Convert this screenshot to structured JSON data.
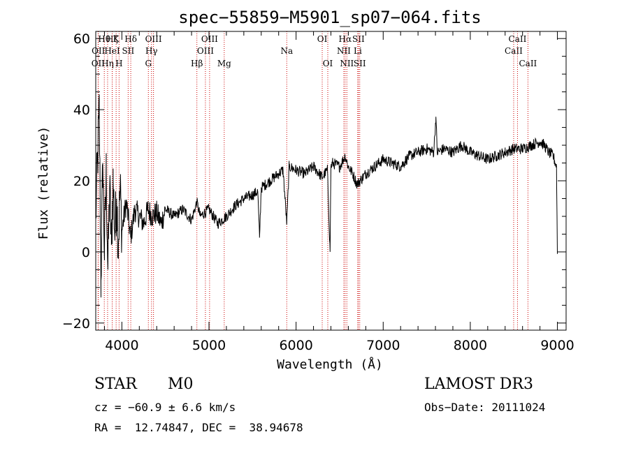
{
  "chart_data": {
    "type": "line",
    "title": "spec−55859−M5901_sp07−064.fits",
    "xlabel": "Wavelength (Å)",
    "ylabel": "Flux (relative)",
    "xlim": [
      3700,
      9100
    ],
    "ylim": [
      -22,
      62
    ],
    "xticks": [
      4000,
      5000,
      6000,
      7000,
      8000,
      9000
    ],
    "xtick_labels": [
      "4000",
      "5000",
      "6000",
      "7000",
      "8000",
      "9000"
    ],
    "yticks": [
      -20,
      0,
      20,
      40,
      60
    ],
    "ytick_labels": [
      "−20",
      "0",
      "20",
      "40",
      "60"
    ],
    "series": [
      {
        "name": "flux",
        "x": [
          3700,
          3740,
          3760,
          3780,
          3800,
          3820,
          3840,
          3860,
          3880,
          3900,
          3920,
          3940,
          3960,
          3980,
          4000,
          4050,
          4100,
          4150,
          4200,
          4250,
          4300,
          4350,
          4400,
          4450,
          4500,
          4600,
          4700,
          4800,
          4860,
          4900,
          5000,
          5100,
          5200,
          5300,
          5400,
          5500,
          5560,
          5580,
          5600,
          5700,
          5800,
          5850,
          5893,
          5920,
          6000,
          6100,
          6200,
          6300,
          6360,
          6390,
          6400,
          6420,
          6500,
          6563,
          6600,
          6650,
          6700,
          6800,
          6900,
          7000,
          7100,
          7200,
          7300,
          7400,
          7500,
          7580,
          7605,
          7620,
          7700,
          7800,
          7900,
          8000,
          8100,
          8200,
          8300,
          8400,
          8500,
          8600,
          8700,
          8800,
          8850,
          8900,
          8950,
          8990,
          9000
        ],
        "y": [
          10,
          40,
          -8,
          25,
          0,
          22,
          -5,
          18,
          2,
          20,
          5,
          15,
          2,
          18,
          6,
          14,
          4,
          12,
          10,
          8,
          12,
          10,
          11,
          8,
          12,
          10,
          12,
          9,
          14,
          10,
          12,
          8,
          10,
          13,
          15,
          16,
          17,
          4,
          18,
          20,
          22,
          23,
          8,
          24,
          23,
          22,
          24,
          21,
          23,
          0,
          24,
          25,
          24,
          27,
          24,
          22,
          19,
          22,
          24,
          26,
          25,
          24,
          27,
          28,
          29,
          28,
          38,
          28,
          29,
          28,
          30,
          28,
          27,
          26,
          27,
          28,
          29,
          29,
          30,
          31,
          30,
          28,
          27,
          24,
          0
        ]
      }
    ],
    "line_markers": [
      {
        "name": "OII",
        "wavelength": 3727,
        "row": 2
      },
      {
        "name": "Hθ",
        "wavelength": 3798,
        "row": 0
      },
      {
        "name": "OII",
        "wavelength": 3730,
        "row": 1
      },
      {
        "name": "Hη",
        "wavelength": 3836,
        "row": 2
      },
      {
        "name": "Hζ",
        "wavelength": 3889,
        "row": 0
      },
      {
        "name": "HeI",
        "wavelength": 3889,
        "row": 1
      },
      {
        "name": "K",
        "wavelength": 3934,
        "row": 0
      },
      {
        "name": "H",
        "wavelength": 3968,
        "row": 2
      },
      {
        "name": "SII",
        "wavelength": 4072,
        "row": 1
      },
      {
        "name": "Hδ",
        "wavelength": 4102,
        "row": 0
      },
      {
        "name": "G",
        "wavelength": 4304,
        "row": 2
      },
      {
        "name": "Hγ",
        "wavelength": 4340,
        "row": 1
      },
      {
        "name": "OIII",
        "wavelength": 4363,
        "row": 0
      },
      {
        "name": "Hβ",
        "wavelength": 4861,
        "row": 2
      },
      {
        "name": "OIII",
        "wavelength": 4959,
        "row": 1
      },
      {
        "name": "OIII",
        "wavelength": 5007,
        "row": 0
      },
      {
        "name": "Mg",
        "wavelength": 5175,
        "row": 2
      },
      {
        "name": "Na",
        "wavelength": 5893,
        "row": 1
      },
      {
        "name": "OI",
        "wavelength": 6300,
        "row": 0
      },
      {
        "name": "OI",
        "wavelength": 6364,
        "row": 2
      },
      {
        "name": "NII",
        "wavelength": 6548,
        "row": 1
      },
      {
        "name": "Hα",
        "wavelength": 6563,
        "row": 0
      },
      {
        "name": "NII",
        "wavelength": 6583,
        "row": 2
      },
      {
        "name": "Li",
        "wavelength": 6708,
        "row": 1
      },
      {
        "name": "SII",
        "wavelength": 6716,
        "row": 0
      },
      {
        "name": "SII",
        "wavelength": 6731,
        "row": 2
      },
      {
        "name": "CaII",
        "wavelength": 8498,
        "row": 1
      },
      {
        "name": "CaII",
        "wavelength": 8542,
        "row": 0
      },
      {
        "name": "CaII",
        "wavelength": 8662,
        "row": 2
      }
    ]
  },
  "info": {
    "class": "STAR",
    "subclass": "M0",
    "survey": "LAMOST DR3",
    "cz": "cz = −60.9 ± 6.6 km/s",
    "obs_date": "Obs−Date: 20111024",
    "radec": "RA =  12.74847, DEC =  38.94678"
  },
  "colors": {
    "spectrum": "#000000",
    "marker_line": "#cc0000",
    "axis": "#000000",
    "background": "#ffffff"
  }
}
